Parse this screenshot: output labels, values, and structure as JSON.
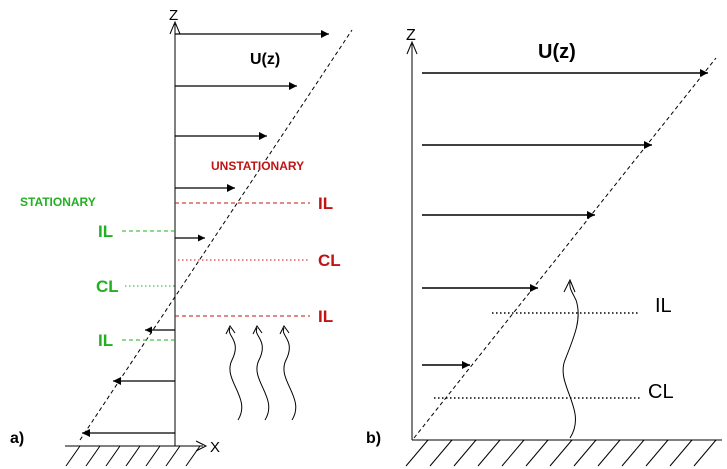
{
  "panel_a": {
    "tag": "a)",
    "axis_z": "Z",
    "axis_x": "X",
    "velocity_label": "U(z)",
    "stationary_title": "STATIONARY",
    "unstationary_title": "UNSTATIONARY",
    "stationary_levels": [
      "IL",
      "CL",
      "IL"
    ],
    "unstationary_levels": [
      "IL",
      "CL",
      "IL"
    ],
    "colors": {
      "stationary": "#22b022",
      "unstationary": "#c01414",
      "ink": "#000000"
    }
  },
  "panel_b": {
    "tag": "b)",
    "axis_z": "Z",
    "velocity_label": "U(z)",
    "levels": [
      "IL",
      "CL"
    ]
  }
}
